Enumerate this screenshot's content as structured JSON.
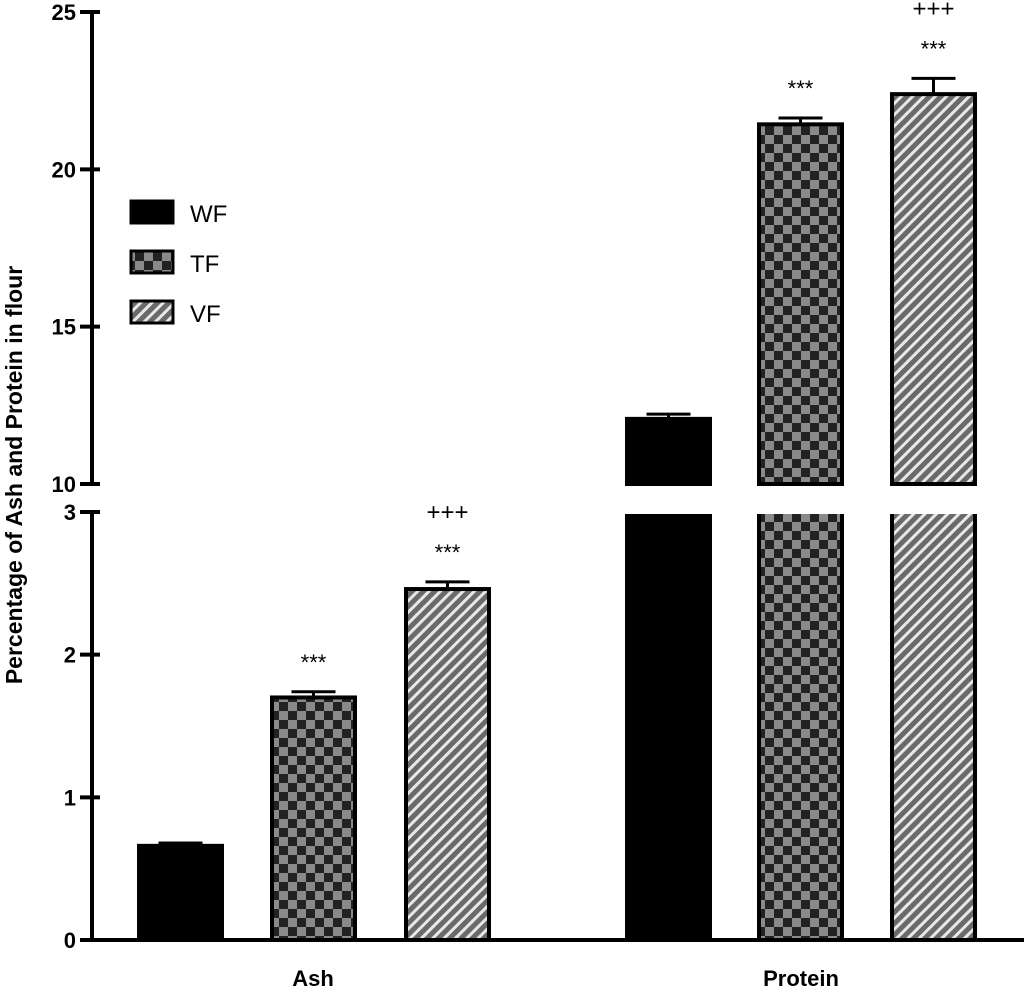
{
  "chart_data": {
    "type": "bar",
    "title": "",
    "xlabel": "",
    "ylabel": "Percentage of Ash and Protein in flour",
    "categories": [
      "Ash",
      "Protein"
    ],
    "axis_break": {
      "lower_range": [
        0,
        3
      ],
      "upper_range": [
        10,
        25
      ]
    },
    "lower_ticks": [
      "0",
      "1",
      "2",
      "3"
    ],
    "upper_ticks": [
      "10",
      "15",
      "20",
      "25"
    ],
    "legend": {
      "placement": "upper-left",
      "entries": [
        "WF",
        "TF",
        "VF"
      ]
    },
    "series": [
      {
        "name": "WF",
        "pattern": "solid",
        "values": [
          0.66,
          12.07
        ],
        "errors": [
          0.02,
          0.15
        ],
        "annotations": [
          "",
          ""
        ]
      },
      {
        "name": "TF",
        "pattern": "checker",
        "values": [
          1.7,
          21.43
        ],
        "errors": [
          0.04,
          0.2
        ],
        "annotations": [
          "***",
          "***"
        ]
      },
      {
        "name": "VF",
        "pattern": "diagonal",
        "values": [
          2.46,
          22.39
        ],
        "errors": [
          0.05,
          0.5
        ],
        "annotations": [
          "***\n+++",
          "***\n+++"
        ]
      }
    ],
    "annotation_lines": {
      "sig": "***",
      "plus": "+++"
    }
  }
}
